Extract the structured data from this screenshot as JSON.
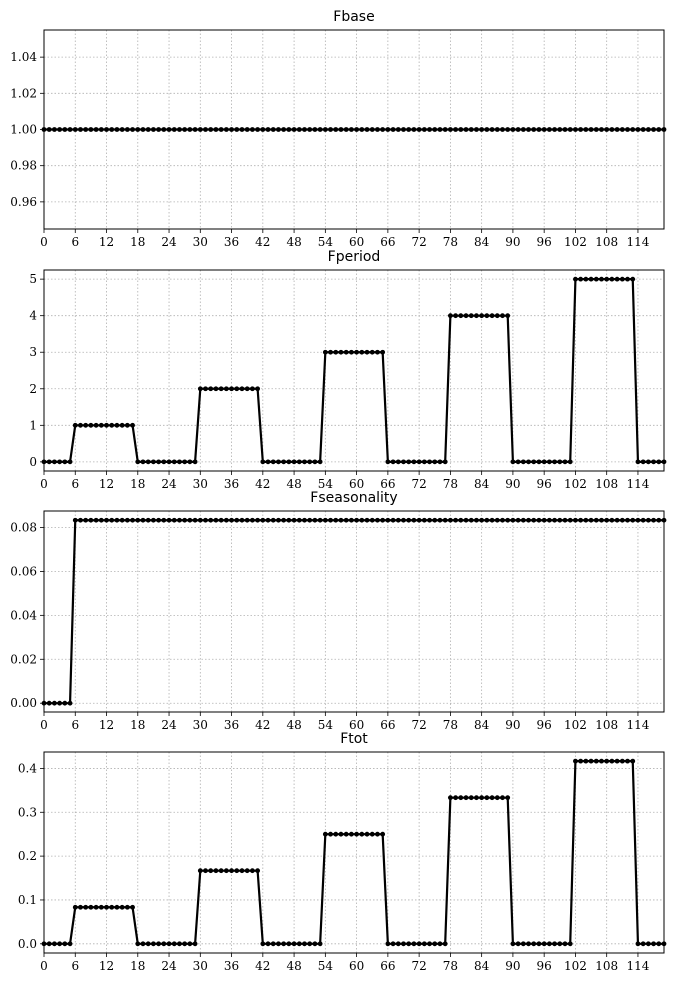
{
  "chart_data": [
    {
      "type": "line",
      "title": "Fbase",
      "x": {
        "start": 0,
        "end": 119
      },
      "x_ticks": [
        0,
        6,
        12,
        18,
        24,
        30,
        36,
        42,
        48,
        54,
        60,
        66,
        72,
        78,
        84,
        90,
        96,
        102,
        108,
        114
      ],
      "xlim": [
        0,
        119
      ],
      "ylim": [
        0.945,
        1.055
      ],
      "y_ticks": [
        0.96,
        0.98,
        1.0,
        1.02,
        1.04
      ],
      "y_tick_labels": [
        "0.96",
        "0.98",
        "1.00",
        "1.02",
        "1.04"
      ],
      "series": [
        {
          "segments": [
            {
              "from": 0,
              "to": 119,
              "value": 1.0
            }
          ]
        }
      ],
      "grid": true,
      "style": {
        "color": "#000000",
        "marker": "dot"
      }
    },
    {
      "type": "line",
      "title": "Fperiod",
      "x": {
        "start": 0,
        "end": 119
      },
      "x_ticks": [
        0,
        6,
        12,
        18,
        24,
        30,
        36,
        42,
        48,
        54,
        60,
        66,
        72,
        78,
        84,
        90,
        96,
        102,
        108,
        114
      ],
      "xlim": [
        0,
        119
      ],
      "ylim": [
        -0.25,
        5.25
      ],
      "y_ticks": [
        0,
        1,
        2,
        3,
        4,
        5
      ],
      "y_tick_labels": [
        "0",
        "1",
        "2",
        "3",
        "4",
        "5"
      ],
      "series": [
        {
          "segments": [
            {
              "from": 0,
              "to": 5,
              "value": 0
            },
            {
              "from": 6,
              "to": 17,
              "value": 1
            },
            {
              "from": 18,
              "to": 29,
              "value": 0
            },
            {
              "from": 30,
              "to": 41,
              "value": 2
            },
            {
              "from": 42,
              "to": 53,
              "value": 0
            },
            {
              "from": 54,
              "to": 65,
              "value": 3
            },
            {
              "from": 66,
              "to": 77,
              "value": 0
            },
            {
              "from": 78,
              "to": 89,
              "value": 4
            },
            {
              "from": 90,
              "to": 101,
              "value": 0
            },
            {
              "from": 102,
              "to": 113,
              "value": 5
            },
            {
              "from": 114,
              "to": 119,
              "value": 0
            }
          ]
        }
      ],
      "grid": true,
      "style": {
        "color": "#000000",
        "marker": "dot"
      }
    },
    {
      "type": "line",
      "title": "Fseasonality",
      "x": {
        "start": 0,
        "end": 119
      },
      "x_ticks": [
        0,
        6,
        12,
        18,
        24,
        30,
        36,
        42,
        48,
        54,
        60,
        66,
        72,
        78,
        84,
        90,
        96,
        102,
        108,
        114
      ],
      "xlim": [
        0,
        119
      ],
      "ylim": [
        -0.004,
        0.0875
      ],
      "y_ticks": [
        0.0,
        0.02,
        0.04,
        0.06,
        0.08
      ],
      "y_tick_labels": [
        "0.00",
        "0.02",
        "0.04",
        "0.06",
        "0.08"
      ],
      "series": [
        {
          "segments": [
            {
              "from": 0,
              "to": 5,
              "value": 0
            },
            {
              "from": 6,
              "to": 119,
              "value": 0.0833
            }
          ]
        }
      ],
      "grid": true,
      "style": {
        "color": "#000000",
        "marker": "dot"
      }
    },
    {
      "type": "line",
      "title": "Ftot",
      "x": {
        "start": 0,
        "end": 119
      },
      "x_ticks": [
        0,
        6,
        12,
        18,
        24,
        30,
        36,
        42,
        48,
        54,
        60,
        66,
        72,
        78,
        84,
        90,
        96,
        102,
        108,
        114
      ],
      "xlim": [
        0,
        119
      ],
      "ylim": [
        -0.021,
        0.4375
      ],
      "y_ticks": [
        0.0,
        0.1,
        0.2,
        0.3,
        0.4
      ],
      "y_tick_labels": [
        "0.0",
        "0.1",
        "0.2",
        "0.3",
        "0.4"
      ],
      "series": [
        {
          "segments": [
            {
              "from": 0,
              "to": 5,
              "value": 0
            },
            {
              "from": 6,
              "to": 17,
              "value": 0.0833
            },
            {
              "from": 18,
              "to": 29,
              "value": 0
            },
            {
              "from": 30,
              "to": 41,
              "value": 0.1667
            },
            {
              "from": 42,
              "to": 53,
              "value": 0
            },
            {
              "from": 54,
              "to": 65,
              "value": 0.25
            },
            {
              "from": 66,
              "to": 77,
              "value": 0
            },
            {
              "from": 78,
              "to": 89,
              "value": 0.3333
            },
            {
              "from": 90,
              "to": 101,
              "value": 0
            },
            {
              "from": 102,
              "to": 113,
              "value": 0.4167
            },
            {
              "from": 114,
              "to": 119,
              "value": 0
            }
          ]
        }
      ],
      "grid": true,
      "style": {
        "color": "#000000",
        "marker": "dot"
      }
    }
  ]
}
